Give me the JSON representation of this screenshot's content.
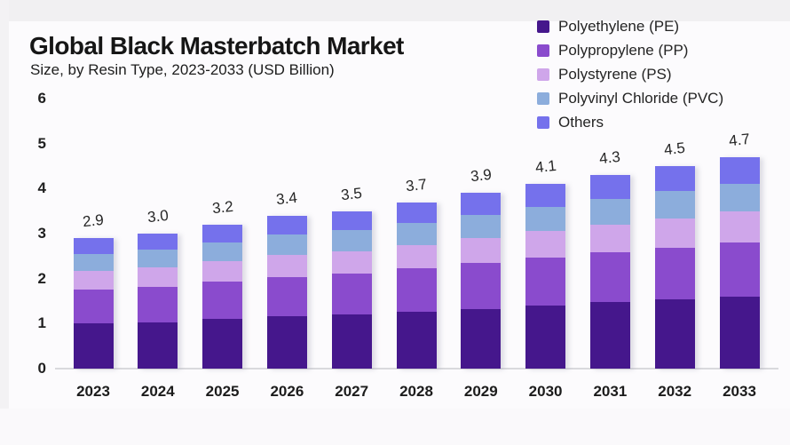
{
  "header": {
    "title": "Global Black Masterbatch Market",
    "subtitle": "Size, by Resin Type, 2023-2033 (USD Billion)"
  },
  "legend": {
    "position": "top-right",
    "items": [
      {
        "label": "Polyethylene (PE)",
        "color": "#45178C"
      },
      {
        "label": "Polypropylene (PP)",
        "color": "#8A4BCD"
      },
      {
        "label": "Polystyrene (PS)",
        "color": "#CFA6EA"
      },
      {
        "label": "Polyvinyl Chloride (PVC)",
        "color": "#8CADDC"
      },
      {
        "label": "Others",
        "color": "#7571EC"
      }
    ]
  },
  "chart_data": {
    "type": "bar",
    "stacked": true,
    "title": "Global Black Masterbatch Market",
    "subtitle": "Size, by Resin Type, 2023-2033 (USD Billion)",
    "xlabel": "",
    "ylabel": "",
    "units": "USD Billion",
    "categories": [
      "2023",
      "2024",
      "2025",
      "2026",
      "2027",
      "2028",
      "2029",
      "2030",
      "2031",
      "2032",
      "2033"
    ],
    "totals": [
      2.9,
      3.0,
      3.2,
      3.4,
      3.5,
      3.7,
      3.9,
      4.1,
      4.3,
      4.5,
      4.7
    ],
    "total_labels": [
      "2.9",
      "3.0",
      "3.2",
      "3.4",
      "3.5",
      "3.7",
      "3.9",
      "4.1",
      "4.3",
      "4.5",
      "4.7"
    ],
    "series": [
      {
        "name": "Polyethylene (PE)",
        "color": "#45178C",
        "values": [
          1.0,
          1.03,
          1.1,
          1.16,
          1.2,
          1.26,
          1.33,
          1.4,
          1.47,
          1.53,
          1.6
        ]
      },
      {
        "name": "Polypropylene (PP)",
        "color": "#8A4BCD",
        "values": [
          0.75,
          0.78,
          0.83,
          0.88,
          0.91,
          0.96,
          1.01,
          1.06,
          1.11,
          1.16,
          1.21
        ]
      },
      {
        "name": "Polystyrene (PS)",
        "color": "#CFA6EA",
        "values": [
          0.42,
          0.43,
          0.46,
          0.49,
          0.5,
          0.53,
          0.56,
          0.59,
          0.62,
          0.65,
          0.68
        ]
      },
      {
        "name": "Polyvinyl Chloride (PVC)",
        "color": "#8CADDC",
        "values": [
          0.38,
          0.4,
          0.42,
          0.45,
          0.46,
          0.49,
          0.52,
          0.54,
          0.57,
          0.6,
          0.62
        ]
      },
      {
        "name": "Others",
        "color": "#7571EC",
        "values": [
          0.35,
          0.36,
          0.39,
          0.42,
          0.43,
          0.46,
          0.48,
          0.51,
          0.53,
          0.56,
          0.59
        ]
      }
    ],
    "y_ticks": [
      0,
      1,
      2,
      3,
      4,
      5,
      6
    ],
    "ylim": [
      0,
      6
    ],
    "grid": false,
    "legend_position": "top-right"
  },
  "colors": {
    "background": "#fcfbfd",
    "top_strip": "#f1f0f2",
    "axis_line": "#d9d9dd",
    "title_text": "#161616"
  }
}
